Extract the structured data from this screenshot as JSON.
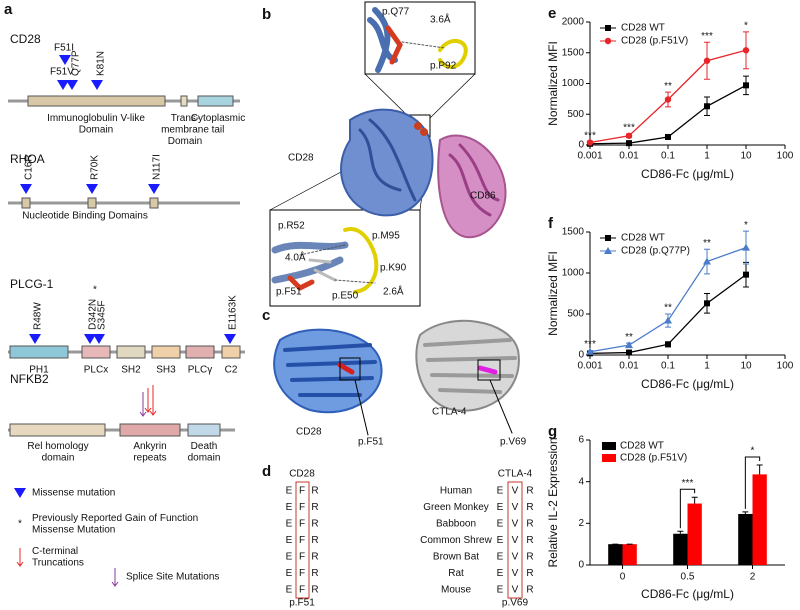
{
  "panels": {
    "a": {
      "label": "a",
      "proteins": [
        {
          "name": "CD28",
          "mutations": [
            "F51I",
            "F51V",
            "Q77P",
            "K81N"
          ],
          "domains": [
            "Immunoglobulin V-like\nDomain",
            "Trans-\nmembrane\nDomain",
            "Cytoplasmic\ntail"
          ]
        },
        {
          "name": "RHOA",
          "mutations": [
            "C16R",
            "R70K",
            "N117I"
          ],
          "domains": [
            "Nucleotide Binding Domains"
          ]
        },
        {
          "name": "PLCG-1",
          "mutations": [
            "R48W",
            "D342N",
            "S345F",
            "E1163K"
          ],
          "domains": [
            "PH1",
            "PLCx",
            "SH2",
            "SH3",
            "PLCγ",
            "C2"
          ]
        },
        {
          "name": "NFKB2",
          "domains": [
            "Rel homology\ndomain",
            "Ankyrin\nrepeats",
            "Death\ndomain"
          ]
        }
      ],
      "legend": [
        "Missense mutation",
        "Previously Reported Gain of Function\nMissense Mutation",
        "C-terminal\nTruncations",
        "Splice Site Mutations"
      ]
    },
    "b": {
      "label": "b",
      "labels": [
        "p.Q77",
        "3.6Å",
        "p.P92",
        "CD28",
        "CD86",
        "p.R52",
        "p.M95",
        "4.0Å",
        "p.K90",
        "p.F51",
        "p.E50",
        "2.6Å"
      ]
    },
    "c": {
      "label": "c",
      "labels": [
        "CD28",
        "p.F51",
        "CTLA-4",
        "p.V69"
      ]
    },
    "d": {
      "label": "d",
      "headers": [
        "CD28",
        "CTLA-4"
      ],
      "rows": [
        {
          "species": "Human",
          "cd28": [
            "E",
            "F",
            "R"
          ],
          "ctla4": [
            "E",
            "V",
            "R"
          ]
        },
        {
          "species": "Green Monkey",
          "cd28": [
            "E",
            "F",
            "R"
          ],
          "ctla4": [
            "E",
            "V",
            "R"
          ]
        },
        {
          "species": "Babboon",
          "cd28": [
            "E",
            "F",
            "R"
          ],
          "ctla4": [
            "E",
            "V",
            "R"
          ]
        },
        {
          "species": "Common Shrew",
          "cd28": [
            "E",
            "F",
            "R"
          ],
          "ctla4": [
            "E",
            "V",
            "R"
          ]
        },
        {
          "species": "Brown Bat",
          "cd28": [
            "E",
            "F",
            "R"
          ],
          "ctla4": [
            "E",
            "V",
            "R"
          ]
        },
        {
          "species": "Rat",
          "cd28": [
            "E",
            "F",
            "R"
          ],
          "ctla4": [
            "E",
            "V",
            "R"
          ]
        },
        {
          "species": "Mouse",
          "cd28": [
            "E",
            "F",
            "R"
          ],
          "ctla4": [
            "E",
            "V",
            "R"
          ]
        }
      ],
      "footers": [
        "p.F51",
        "p.V69"
      ]
    }
  },
  "chart_data": [
    {
      "type": "line",
      "panel": "e",
      "log_x": true,
      "x": [
        0.001,
        0.01,
        0.1,
        1,
        10
      ],
      "xlim": [
        0.001,
        100
      ],
      "xticks": [
        0.001,
        0.01,
        0.1,
        1,
        10,
        100
      ],
      "ylim": [
        0,
        2000
      ],
      "yticks": [
        0,
        500,
        1000,
        1500,
        2000
      ],
      "xlabel": "CD86-Fc (μg/mL)",
      "ylabel": "Normalized MFI",
      "legend": "upper left",
      "series": [
        {
          "name": "CD28 WT",
          "color": "#000000",
          "marker": "square",
          "values": [
            20,
            30,
            130,
            630,
            970
          ],
          "errors": [
            10,
            10,
            30,
            150,
            150
          ]
        },
        {
          "name": "CD28 (p.F51V)",
          "color": "#e8262a",
          "marker": "circle",
          "values": [
            40,
            150,
            740,
            1370,
            1540
          ],
          "errors": [
            15,
            30,
            120,
            300,
            300
          ]
        }
      ],
      "significance": [
        "***",
        "***",
        "**",
        "***",
        "*"
      ]
    },
    {
      "type": "line",
      "panel": "f",
      "log_x": true,
      "x": [
        0.001,
        0.01,
        0.1,
        1,
        10
      ],
      "xlim": [
        0.001,
        100
      ],
      "xticks": [
        0.001,
        0.01,
        0.1,
        1,
        10,
        100
      ],
      "ylim": [
        0,
        1500
      ],
      "yticks": [
        0,
        500,
        1000,
        1500
      ],
      "xlabel": "CD86-Fc (μg/mL)",
      "ylabel": "Normalized MFI",
      "legend": "upper left",
      "series": [
        {
          "name": "CD28 WT",
          "color": "#000000",
          "marker": "square",
          "values": [
            20,
            30,
            130,
            630,
            980
          ],
          "errors": [
            10,
            10,
            30,
            120,
            150
          ]
        },
        {
          "name": "CD28 (p.Q77P)",
          "color": "#4a7cc9",
          "marker": "triangle",
          "values": [
            40,
            120,
            420,
            1140,
            1310
          ],
          "errors": [
            15,
            25,
            80,
            150,
            200
          ]
        }
      ],
      "significance": [
        "***",
        "**",
        "**",
        "**",
        "*"
      ]
    },
    {
      "type": "bar",
      "panel": "g",
      "categories": [
        "0",
        "0.5",
        "2"
      ],
      "ylim": [
        0,
        6
      ],
      "yticks": [
        0,
        2,
        4,
        6
      ],
      "xlabel": "CD86-Fc (μg/mL)",
      "ylabel": "Relative IL-2 Expression",
      "legend": "upper left",
      "series": [
        {
          "name": "CD28 WT",
          "color": "#000000",
          "values": [
            1,
            1.5,
            2.45
          ],
          "errors": [
            0,
            0.12,
            0.1
          ]
        },
        {
          "name": "CD28 (p.F51V)",
          "color": "#ff0000",
          "values": [
            1,
            2.95,
            4.35
          ],
          "errors": [
            0,
            0.3,
            0.45
          ]
        }
      ],
      "significance": [
        null,
        "***",
        "*"
      ]
    }
  ]
}
